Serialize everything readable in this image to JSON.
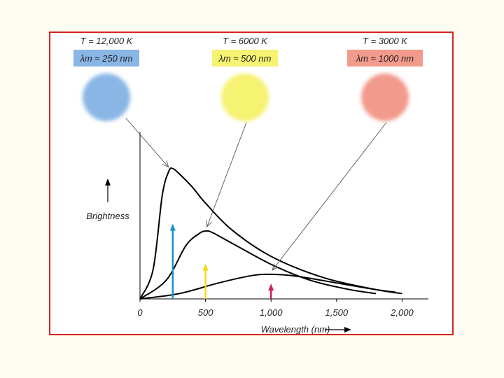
{
  "chart_data": {
    "type": "line",
    "xlabel": "Wavelength (nm)",
    "ylabel": "Brightness",
    "xlim": [
      0,
      2100
    ],
    "ylim": [
      0,
      1.0
    ],
    "x_ticks": [
      0,
      500,
      1000,
      1500,
      2000
    ],
    "x_tick_labels": [
      "0",
      "500",
      "1,000",
      "1,500",
      "2,000"
    ],
    "series": [
      {
        "temperature_label": "T = 12,000 K",
        "peak_label": "λm ≈ 250 nm",
        "peak_nm": 250,
        "color": "#8ab6e6",
        "arrow_color": "#1b8fc6",
        "arrow_height": 0.56,
        "x": [
          0,
          100,
          170,
          220,
          250,
          300,
          400,
          500,
          700,
          1000,
          1400,
          1800,
          2000
        ],
        "y": [
          0.0,
          0.22,
          0.78,
          0.96,
          0.98,
          0.94,
          0.84,
          0.72,
          0.52,
          0.32,
          0.16,
          0.07,
          0.04
        ]
      },
      {
        "temperature_label": "T = 6000 K",
        "peak_label": "λm ≈ 500 nm",
        "peak_nm": 500,
        "color": "#f6f272",
        "arrow_color": "#f0da1a",
        "arrow_height": 0.26,
        "x": [
          0,
          200,
          350,
          450,
          500,
          550,
          700,
          1000,
          1300,
          1600,
          1800
        ],
        "y": [
          0.0,
          0.14,
          0.4,
          0.49,
          0.51,
          0.5,
          0.42,
          0.26,
          0.14,
          0.07,
          0.04
        ]
      },
      {
        "temperature_label": "T = 3000 K",
        "peak_label": "λm ≈ 1000 nm",
        "peak_nm": 1000,
        "color": "#f29a8c",
        "arrow_color": "#d0205a",
        "arrow_height": 0.11,
        "x": [
          0,
          300,
          600,
          850,
          1000,
          1200,
          1500,
          1800,
          1950
        ],
        "y": [
          0.0,
          0.04,
          0.12,
          0.175,
          0.185,
          0.17,
          0.12,
          0.07,
          0.05
        ]
      }
    ]
  }
}
